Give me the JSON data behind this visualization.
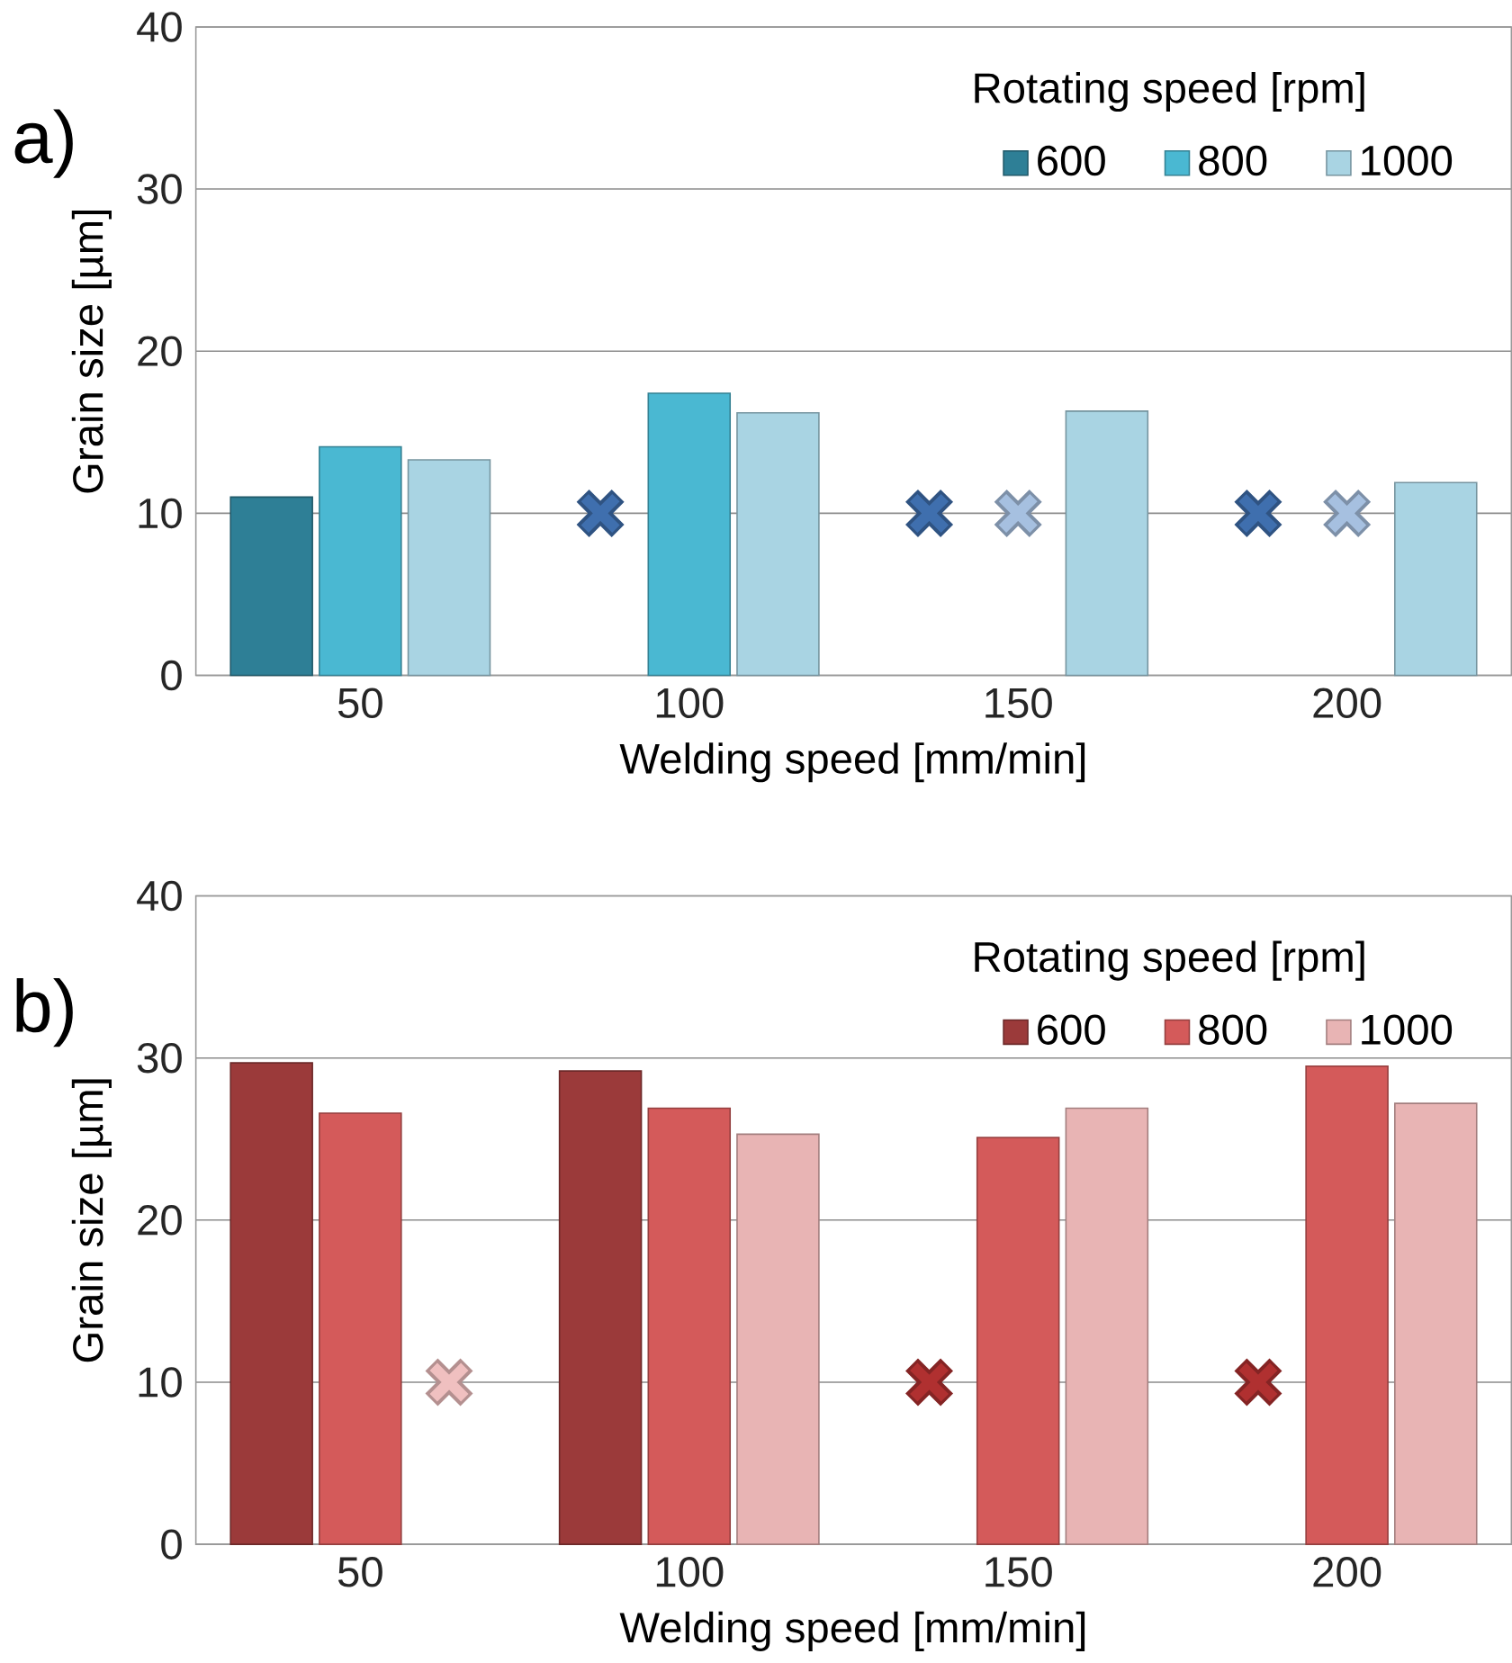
{
  "chart_data": [
    {
      "type": "bar",
      "title": "a)",
      "xlabel": "Welding speed [mm/min]",
      "ylabel": "Grain size [µm]",
      "legend_title": "Rotating speed [rpm]",
      "categories": [
        "50",
        "100",
        "150",
        "200"
      ],
      "ylim": [
        0,
        40
      ],
      "yticks": [
        0,
        10,
        20,
        30,
        40
      ],
      "grid": "y",
      "legend": "top right",
      "series": [
        {
          "name": "600",
          "color": "#2e7f96",
          "values": [
            11,
            null,
            null,
            null
          ]
        },
        {
          "type": "scatter",
          "marker": "cross",
          "color": "#3f6fae",
          "x": [
            "100",
            "150",
            "200"
          ],
          "values": [
            10,
            10,
            10
          ]
        },
        {
          "name": "800",
          "color": "#4ab8d2",
          "values": [
            14.1,
            17.4,
            null,
            null
          ]
        },
        {
          "type": "scatter",
          "marker": "cross",
          "color": "#a6c0e0",
          "x": [
            "150",
            "200"
          ],
          "values": [
            10,
            10
          ]
        },
        {
          "name": "1000",
          "color": "#a9d4e3",
          "values": [
            13.3,
            16.2,
            16.3,
            11.9
          ]
        }
      ]
    },
    {
      "type": "bar",
      "title": "b)",
      "xlabel": "Welding speed [mm/min]",
      "ylabel": "Grain size [µm]",
      "legend_title": "Rotating speed [rpm]",
      "categories": [
        "50",
        "100",
        "150",
        "200"
      ],
      "ylim": [
        0,
        40
      ],
      "yticks": [
        0,
        10,
        20,
        30,
        40
      ],
      "grid": "y",
      "legend": "top right",
      "series": [
        {
          "name": "600",
          "color": "#9b3a3a",
          "values": [
            29.7,
            29.2,
            null,
            null
          ]
        },
        {
          "type": "scatter",
          "marker": "cross",
          "color": "#b03030",
          "x": [
            "150",
            "200"
          ],
          "values": [
            10,
            10
          ]
        },
        {
          "name": "800",
          "color": "#d45a5a",
          "values": [
            26.6,
            26.9,
            25.1,
            29.5
          ]
        },
        {
          "name": "1000",
          "color": "#e8b4b4",
          "values": [
            null,
            25.3,
            26.9,
            27.2
          ]
        },
        {
          "type": "scatter",
          "marker": "cross",
          "color": "#f0c0c0",
          "x": [
            "50"
          ],
          "values": [
            10
          ]
        }
      ]
    }
  ]
}
